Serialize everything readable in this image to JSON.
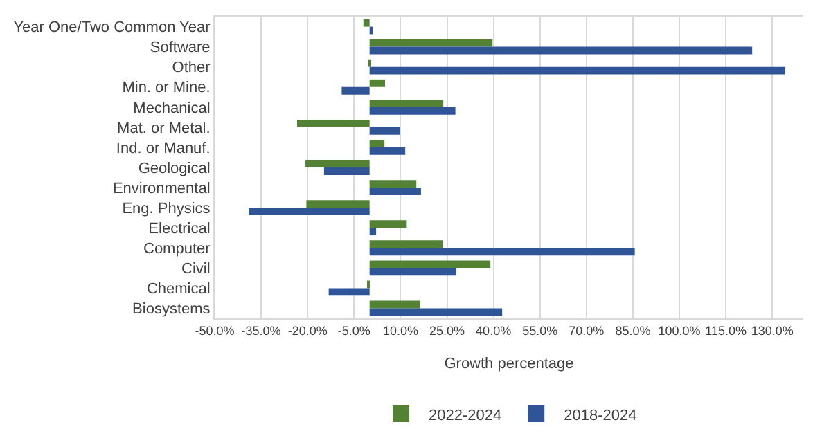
{
  "chart_data": {
    "type": "bar",
    "orientation": "horizontal",
    "xlabel": "Growth percentage",
    "categories": [
      "Year One/Two Common Year",
      "Software",
      "Other",
      "Min. or Mine.",
      "Mechanical",
      "Mat. or Metal.",
      "Ind. or Manuf.",
      "Geological",
      "Environmental",
      "Eng. Physics",
      "Electrical",
      "Computer",
      "Civil",
      "Chemical",
      "Biosystems"
    ],
    "series": [
      {
        "name": "2022-2024",
        "color": "#548235",
        "values": [
          -2.0,
          39.7,
          0.3,
          5.0,
          23.8,
          -23.4,
          4.8,
          -20.7,
          15.1,
          -20.4,
          12.0,
          23.7,
          39.0,
          -0.5,
          16.3
        ]
      },
      {
        "name": "2018-2024",
        "color": "#2f5597",
        "values": [
          1.0,
          123.5,
          134.2,
          -9.0,
          27.7,
          9.8,
          11.5,
          -14.7,
          16.6,
          -39.0,
          2.1,
          85.6,
          28.0,
          -13.2,
          42.8
        ]
      }
    ],
    "xlim": [
      -50,
      140
    ],
    "xticks": [
      {
        "value": -50,
        "label": "-50.0%"
      },
      {
        "value": -35,
        "label": "-35.0%"
      },
      {
        "value": -20,
        "label": "-20.0%"
      },
      {
        "value": -5,
        "label": "-5.0%"
      },
      {
        "value": 10,
        "label": "10.0%"
      },
      {
        "value": 25,
        "label": "25.0%"
      },
      {
        "value": 40,
        "label": "40.0%"
      },
      {
        "value": 55,
        "label": "55.0%"
      },
      {
        "value": 70,
        "label": "70.0%"
      },
      {
        "value": 85,
        "label": "85.0%"
      },
      {
        "value": 100,
        "label": "100.0%"
      },
      {
        "value": 115,
        "label": "115.0%"
      },
      {
        "value": 130,
        "label": "130.0%"
      }
    ],
    "grid": "x",
    "legend": "bottom"
  }
}
